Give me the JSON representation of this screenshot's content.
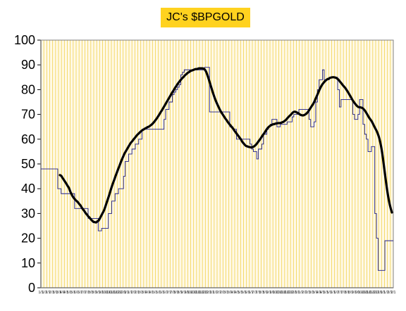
{
  "chart_data": {
    "type": "line",
    "title": "JC's $BPGOLD",
    "xlabel": "",
    "ylabel": "",
    "ylim": [
      0,
      100
    ],
    "y_ticks": [
      0,
      10,
      20,
      30,
      40,
      50,
      60,
      70,
      80,
      90,
      100
    ],
    "x_ticks": [
      "1/1",
      "1/1",
      "2/1",
      "2/1",
      "3/1",
      "3/1",
      "4/1",
      "4/1",
      "5/1",
      "5/1",
      "6/1",
      "6/1",
      "7/1",
      "7/1",
      "8/1",
      "8/1",
      "9/1",
      "9/1",
      "10/1",
      "10/1",
      "11/1",
      "11/1",
      "12/1",
      "12/1",
      "1/1",
      "1/1",
      "2/1",
      "2/1",
      "3/1",
      "3/1",
      "4/1",
      "4/1",
      "5/1",
      "5/1",
      "6/1",
      "6/1",
      "7/1",
      "7/1",
      "8/1",
      "8/1",
      "9/1",
      "9/1",
      "10/1",
      "10/1",
      "11/1",
      "11/1",
      "12/1",
      "12/1",
      "1/1",
      "1/1",
      "2/1",
      "2/1",
      "3/1",
      "3/1",
      "4/1",
      "4/1",
      "5/1",
      "5/1",
      "6/1",
      "6/1",
      "7/1",
      "7/1",
      "8/1",
      "8/1",
      "9/1",
      "9/1",
      "10/1",
      "10/1",
      "11/1",
      "11/1",
      "12/1",
      "12/1",
      "1/1",
      "1/1",
      "2/1",
      "2/1",
      "3/1",
      "3/1",
      "4/1",
      "4/1",
      "5/1",
      "5/1",
      "6/1",
      "6/1",
      "7/1",
      "7/1",
      "8/1",
      "8/1",
      "9/1",
      "9/1",
      "10/1",
      "10/1",
      "11/1",
      "11/1",
      "12/1",
      "12/1",
      "1/1",
      "1/1",
      "2/1",
      "2/1"
    ],
    "grid": true,
    "grid_style": "vertical",
    "series": [
      {
        "values": [
          48,
          48,
          48,
          48,
          48,
          48,
          48,
          48,
          48,
          48,
          40,
          40,
          38,
          38,
          38,
          38,
          38,
          38,
          38,
          38,
          32,
          32,
          32,
          32,
          32,
          32,
          32,
          32,
          28,
          28,
          28,
          28,
          28,
          28,
          23,
          23,
          24,
          24,
          24,
          24,
          30,
          30,
          35,
          35,
          38,
          38,
          40,
          40,
          40,
          45,
          51,
          51,
          54,
          54,
          56,
          56,
          58,
          58,
          60,
          60,
          64,
          64,
          64,
          64,
          64,
          64,
          64,
          64,
          64,
          64,
          64,
          64,
          64,
          68,
          72,
          72,
          75,
          75,
          78,
          79,
          80,
          81,
          82,
          86,
          87,
          88,
          88,
          88,
          88,
          88,
          88,
          88,
          88,
          88,
          88,
          88,
          88,
          89,
          89,
          89,
          71,
          71,
          71,
          71,
          71,
          71,
          71,
          71,
          71,
          71,
          71,
          71,
          65,
          65,
          64,
          64,
          60,
          60,
          60,
          60,
          60,
          60,
          60,
          60,
          58,
          56,
          55,
          55,
          52,
          56,
          56,
          58,
          62,
          62,
          64,
          65,
          66,
          68,
          68,
          68,
          65,
          65,
          66,
          66,
          66,
          66,
          67,
          67,
          67,
          69,
          70,
          70,
          70,
          72,
          72,
          72,
          72,
          72,
          72,
          68,
          65,
          65,
          67,
          75,
          80,
          84,
          84,
          88,
          84,
          84,
          84,
          85,
          85,
          85,
          85,
          85,
          80,
          73,
          76,
          76,
          76,
          76,
          76,
          76,
          76,
          70,
          68,
          68,
          70,
          76,
          76,
          66,
          62,
          60,
          55,
          55,
          57,
          57,
          30,
          20,
          7,
          7,
          7,
          7,
          19,
          19,
          19,
          19,
          19,
          19
        ],
        "color": "#1c1c8a",
        "style": "thin-step"
      },
      {
        "values": [
          45.5,
          45.2,
          44.4,
          43.6,
          42.8,
          42.0,
          41.1,
          40.3,
          38.9,
          37.8,
          36.8,
          36.1,
          35.5,
          35.0,
          34.5,
          33.8,
          33.2,
          32.3,
          31.6,
          30.9,
          30.1,
          29.5,
          28.8,
          28.3,
          27.6,
          27.1,
          26.6,
          26.5,
          26.4,
          26.8,
          27.2,
          28.1,
          29.1,
          30.1,
          31.1,
          32.5,
          34.1,
          35.6,
          37.2,
          38.9,
          40.6,
          42.1,
          43.5,
          45.0,
          46.4,
          47.8,
          49.1,
          50.5,
          51.8,
          53.0,
          54.2,
          55.1,
          56.0,
          56.9,
          57.8,
          58.6,
          59.2,
          59.9,
          60.5,
          61.2,
          61.8,
          62.3,
          62.8,
          63.3,
          63.7,
          64.0,
          64.3,
          64.6,
          64.9,
          65.1,
          65.5,
          65.9,
          66.4,
          67.0,
          67.7,
          68.4,
          69.2,
          70.0,
          70.9,
          71.7,
          72.6,
          73.5,
          74.4,
          75.3,
          76.2,
          77.1,
          78.0,
          78.9,
          79.7,
          80.6,
          81.4,
          82.2,
          82.9,
          83.6,
          84.2,
          84.8,
          85.3,
          85.9,
          86.3,
          86.8,
          87.1,
          87.5,
          87.7,
          87.9,
          88.1,
          88.3,
          88.3,
          88.5,
          88.6,
          88.6,
          88.6,
          88.5,
          88.2,
          87.4,
          86.1,
          84.6,
          82.9,
          81.2,
          79.5,
          77.9,
          76.4,
          75.1,
          73.9,
          72.8,
          71.7,
          70.8,
          70.0,
          69.2,
          68.4,
          67.7,
          66.9,
          66.2,
          65.6,
          64.9,
          64.3,
          63.5,
          62.8,
          62.1,
          61.4,
          60.7,
          60.0,
          59.1,
          58.4,
          57.8,
          57.3,
          57.1,
          56.9,
          56.8,
          56.7,
          56.8,
          57.0,
          57.4,
          57.9,
          58.6,
          59.3,
          60.0,
          60.8,
          61.6,
          62.3,
          63.1,
          63.9,
          64.6,
          65.1,
          65.5,
          65.8,
          66.0,
          66.1,
          66.3,
          66.4,
          66.5,
          66.5,
          66.6,
          66.8,
          67.0,
          67.4,
          67.8,
          68.4,
          69.0,
          69.5,
          70.0,
          70.6,
          71.0,
          71.1,
          70.9,
          70.6,
          70.3,
          69.9,
          69.7,
          69.6,
          69.7,
          70.0,
          70.4,
          71.0,
          71.8,
          72.6,
          73.4,
          74.2,
          75.2,
          76.4,
          77.6,
          78.8,
          80.0,
          81.1,
          82.0,
          82.7,
          83.3,
          83.8,
          84.2,
          84.4,
          84.7,
          84.9,
          85.0,
          85.0,
          84.9,
          84.7,
          84.3,
          83.8,
          83.1,
          82.5,
          81.8,
          81.2,
          80.6,
          79.8,
          79.0,
          78.1,
          77.2,
          76.3,
          75.4,
          74.7,
          74.0,
          73.4,
          73.0,
          72.9,
          72.8,
          72.6,
          72.2,
          71.6,
          70.8,
          69.9,
          69.0,
          68.2,
          67.5,
          66.6,
          65.5,
          64.5,
          63.5,
          62.3,
          60.8,
          58.7,
          56.0,
          52.5,
          48.5,
          44.4,
          40.6,
          37.2,
          34.4,
          32.2,
          30.4
        ],
        "color": "#000000",
        "style": "thick-smooth"
      }
    ]
  }
}
